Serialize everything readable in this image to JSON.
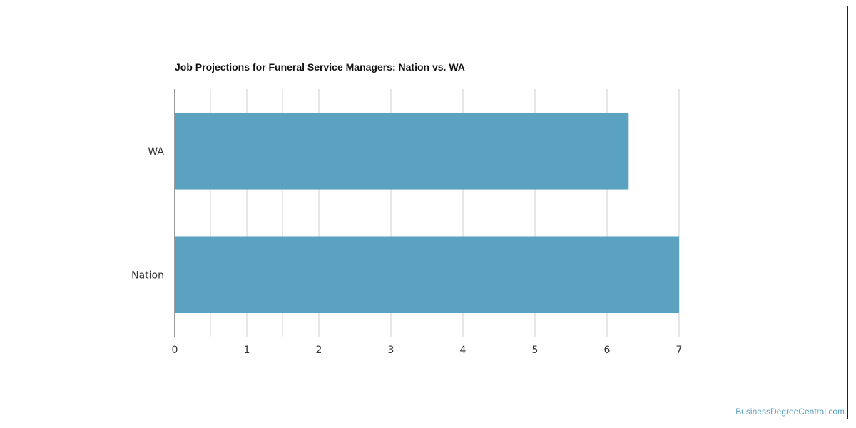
{
  "chart_data": {
    "type": "bar",
    "orientation": "horizontal",
    "title": "Job Projections for Funeral Service Managers: Nation vs. WA",
    "categories": [
      "WA",
      "Nation"
    ],
    "values": [
      6.3,
      7
    ],
    "xlim": [
      0,
      7
    ],
    "xticks": [
      0,
      1,
      2,
      3,
      4,
      5,
      6,
      7
    ],
    "grid": true,
    "bar_color": "#5ba1c0"
  },
  "watermark": "BusinessDegreeCentral.com"
}
